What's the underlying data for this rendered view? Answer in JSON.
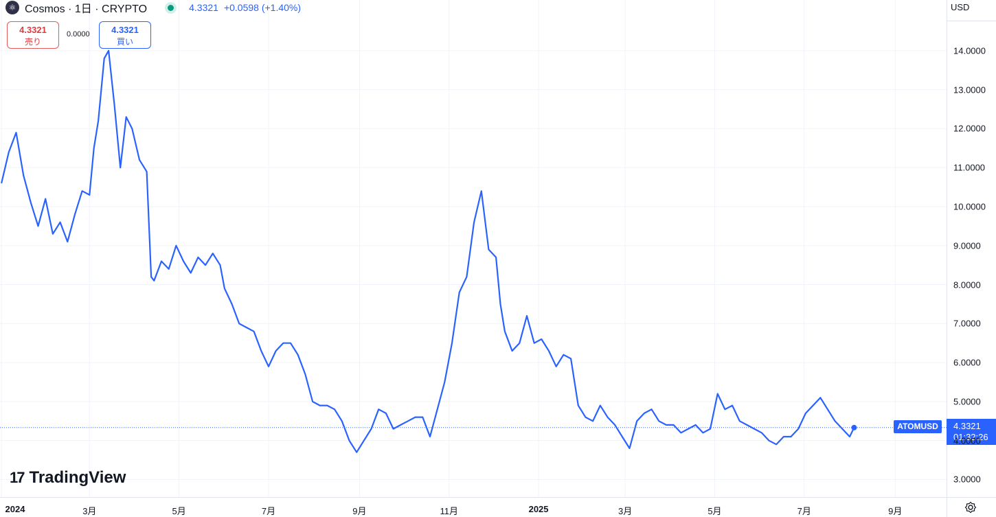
{
  "header": {
    "symbol_title": "Cosmos · 1日 · CRYPTO",
    "last_price": "4.3321",
    "change": "+0.0598 (+1.40%)",
    "accent_color": "#2962ff",
    "status_color": "#089981"
  },
  "trade_panel": {
    "sell_price": "4.3321",
    "sell_label": "売り",
    "spread": "0.0000",
    "buy_price": "4.3321",
    "buy_label": "買い"
  },
  "currency": "USD",
  "price_tag": {
    "symbol": "ATOMUSD",
    "price": "4.3321",
    "countdown": "01:32:26"
  },
  "branding": {
    "name": "TradingView"
  },
  "chart_data": {
    "type": "line",
    "series": [
      {
        "color": "#2962ff",
        "x": [
          "2024-01-01",
          "2024-01-06",
          "2024-01-11",
          "2024-01-16",
          "2024-01-21",
          "2024-01-26",
          "2024-01-31",
          "2024-02-05",
          "2024-02-10",
          "2024-02-15",
          "2024-02-20",
          "2024-02-25",
          "2024-03-01",
          "2024-03-04",
          "2024-03-07",
          "2024-03-11",
          "2024-03-14",
          "2024-03-18",
          "2024-03-22",
          "2024-03-26",
          "2024-03-30",
          "2024-04-04",
          "2024-04-09",
          "2024-04-12",
          "2024-04-14",
          "2024-04-19",
          "2024-04-24",
          "2024-04-29",
          "2024-05-04",
          "2024-05-09",
          "2024-05-14",
          "2024-05-19",
          "2024-05-24",
          "2024-05-29",
          "2024-06-01",
          "2024-06-06",
          "2024-06-11",
          "2024-06-16",
          "2024-06-21",
          "2024-06-26",
          "2024-07-01",
          "2024-07-06",
          "2024-07-11",
          "2024-07-16",
          "2024-07-21",
          "2024-07-26",
          "2024-07-31",
          "2024-08-05",
          "2024-08-10",
          "2024-08-15",
          "2024-08-20",
          "2024-08-25",
          "2024-08-30",
          "2024-09-04",
          "2024-09-09",
          "2024-09-14",
          "2024-09-19",
          "2024-09-24",
          "2024-09-29",
          "2024-10-04",
          "2024-10-09",
          "2024-10-14",
          "2024-10-19",
          "2024-10-24",
          "2024-10-29",
          "2024-11-03",
          "2024-11-08",
          "2024-11-13",
          "2024-11-18",
          "2024-11-23",
          "2024-11-28",
          "2024-12-03",
          "2024-12-06",
          "2024-12-09",
          "2024-12-14",
          "2024-12-19",
          "2024-12-24",
          "2024-12-29",
          "2025-01-03",
          "2025-01-08",
          "2025-01-13",
          "2025-01-18",
          "2025-01-23",
          "2025-01-28",
          "2025-02-02",
          "2025-02-07",
          "2025-02-12",
          "2025-02-17",
          "2025-02-22",
          "2025-02-27",
          "2025-03-04",
          "2025-03-09",
          "2025-03-14",
          "2025-03-19",
          "2025-03-24",
          "2025-03-29",
          "2025-04-03",
          "2025-04-08",
          "2025-04-13",
          "2025-04-18",
          "2025-04-23",
          "2025-04-28",
          "2025-05-03",
          "2025-05-08",
          "2025-05-13",
          "2025-05-18",
          "2025-05-23",
          "2025-05-28",
          "2025-06-02",
          "2025-06-07",
          "2025-06-12",
          "2025-06-17",
          "2025-06-22",
          "2025-06-27",
          "2025-07-02",
          "2025-07-07",
          "2025-07-12",
          "2025-07-17",
          "2025-07-22",
          "2025-07-27",
          "2025-08-01",
          "2025-08-04"
        ],
        "y": [
          10.6,
          11.4,
          11.9,
          10.8,
          10.1,
          9.5,
          10.2,
          9.3,
          9.6,
          9.1,
          9.8,
          10.4,
          10.3,
          11.5,
          12.2,
          13.8,
          14.0,
          12.6,
          11.0,
          12.3,
          12.0,
          11.2,
          10.9,
          8.2,
          8.1,
          8.6,
          8.4,
          9.0,
          8.6,
          8.3,
          8.7,
          8.5,
          8.8,
          8.5,
          7.9,
          7.5,
          7.0,
          6.9,
          6.8,
          6.3,
          5.9,
          6.3,
          6.5,
          6.5,
          6.2,
          5.7,
          5.0,
          4.9,
          4.9,
          4.8,
          4.5,
          4.0,
          3.7,
          4.0,
          4.3,
          4.8,
          4.7,
          4.3,
          4.4,
          4.5,
          4.6,
          4.6,
          4.1,
          4.8,
          5.5,
          6.5,
          7.8,
          8.2,
          9.6,
          10.4,
          8.9,
          8.7,
          7.5,
          6.8,
          6.3,
          6.5,
          7.2,
          6.5,
          6.6,
          6.3,
          5.9,
          6.2,
          6.1,
          4.9,
          4.6,
          4.5,
          4.9,
          4.6,
          4.4,
          4.1,
          3.8,
          4.5,
          4.7,
          4.8,
          4.5,
          4.4,
          4.4,
          4.2,
          4.3,
          4.4,
          4.2,
          4.3,
          5.2,
          4.8,
          4.9,
          4.5,
          4.4,
          4.3,
          4.2,
          4.0,
          3.9,
          4.1,
          4.1,
          4.3,
          4.7,
          4.9,
          5.1,
          4.8,
          4.5,
          4.3,
          4.1,
          4.3321
        ]
      }
    ],
    "ylim": [
      2.55,
      15.3
    ],
    "y_ticks": [
      "3.0000",
      "4.0000",
      "5.0000",
      "6.0000",
      "7.0000",
      "8.0000",
      "9.0000",
      "10.0000",
      "11.0000",
      "12.0000",
      "13.0000",
      "14.0000"
    ],
    "x_ticks": [
      {
        "label": "2024",
        "date": "2024-01-01",
        "bold": true
      },
      {
        "label": "3月",
        "date": "2024-03-01"
      },
      {
        "label": "5月",
        "date": "2024-05-01"
      },
      {
        "label": "7月",
        "date": "2024-07-01"
      },
      {
        "label": "9月",
        "date": "2024-09-01"
      },
      {
        "label": "11月",
        "date": "2024-11-01"
      },
      {
        "label": "2025",
        "date": "2025-01-01",
        "bold": true
      },
      {
        "label": "3月",
        "date": "2025-03-01"
      },
      {
        "label": "5月",
        "date": "2025-05-01"
      },
      {
        "label": "7月",
        "date": "2025-07-01"
      },
      {
        "label": "9月",
        "date": "2025-09-01"
      }
    ],
    "xlim": [
      "2023-12-31",
      "2025-10-06"
    ],
    "last_value": 4.3321,
    "grid": true
  }
}
